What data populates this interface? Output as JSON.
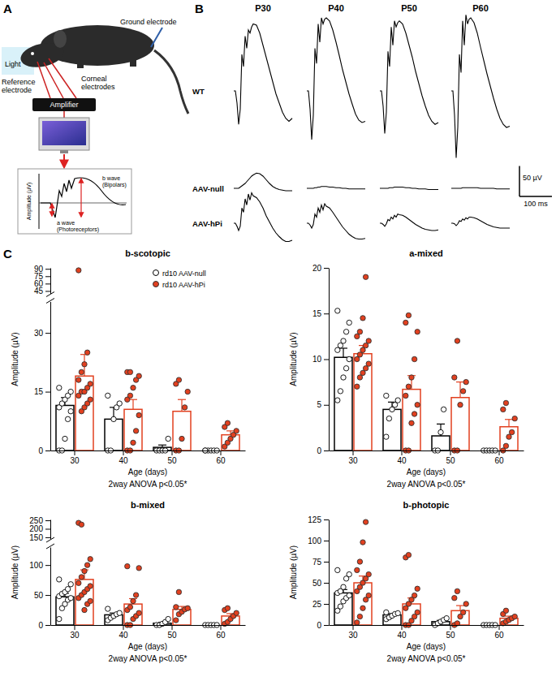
{
  "panel_labels": [
    "A",
    "B",
    "C"
  ],
  "diagram": {
    "ground": "Ground electrode",
    "light": "Light",
    "reference": [
      "Reference",
      "electrode"
    ],
    "corneal": [
      "Corneal",
      "electrodes"
    ],
    "amplifier": "Amplifier",
    "inset_y": "Amplitude (µV)",
    "b_wave": [
      "b wave",
      "(Bipolars)"
    ],
    "a_wave": [
      "a wave",
      "(Photoreceptors)"
    ]
  },
  "chart_data": [
    {
      "type": "line",
      "tick_labels": false,
      "panels": [
        "P30",
        "P40",
        "P50",
        "P60"
      ],
      "x": [
        0,
        5,
        10,
        15,
        20,
        25,
        30,
        35,
        40,
        45,
        50,
        55,
        60,
        70,
        80,
        90,
        100,
        110,
        120,
        130,
        140,
        150,
        160,
        170,
        180
      ],
      "series": [
        {
          "name": "WT",
          "color": "#000000",
          "traces": [
            [
              0,
              0,
              -20,
              -55,
              -30,
              60,
              40,
              90,
              70,
              100,
              95,
              105,
              110,
              108,
              95,
              75,
              55,
              35,
              15,
              -5,
              -20,
              -35,
              -45,
              -50,
              -45
            ],
            [
              0,
              0,
              -30,
              -80,
              -40,
              70,
              45,
              110,
              80,
              120,
              110,
              118,
              120,
              115,
              100,
              80,
              58,
              35,
              15,
              -5,
              -22,
              -38,
              -48,
              -52,
              -50
            ],
            [
              0,
              0,
              -25,
              -70,
              -35,
              65,
              40,
              105,
              75,
              115,
              105,
              112,
              115,
              110,
              95,
              75,
              55,
              32,
              12,
              -8,
              -25,
              -40,
              -50,
              -55,
              -52
            ],
            [
              0,
              0,
              -40,
              -110,
              -60,
              60,
              30,
              115,
              75,
              125,
              110,
              118,
              120,
              112,
              95,
              72,
              50,
              28,
              8,
              -12,
              -30,
              -45,
              -55,
              -60,
              -58
            ]
          ]
        },
        {
          "name": "AAV-null",
          "color": "#000000",
          "traces": [
            [
              0,
              0,
              0,
              0,
              2,
              4,
              6,
              8,
              11,
              14,
              17,
              20,
              22,
              25,
              24,
              20,
              14,
              8,
              3,
              0,
              -2,
              -3,
              -4,
              -4,
              -4
            ],
            [
              0,
              0,
              0,
              0,
              0,
              1,
              1,
              2,
              2,
              3,
              3,
              3,
              3,
              2,
              2,
              1,
              1,
              0,
              0,
              -1,
              -1,
              -1,
              -1,
              -1,
              -1
            ],
            [
              0,
              0,
              0,
              0,
              0,
              0,
              1,
              1,
              1,
              2,
              2,
              2,
              2,
              2,
              1,
              1,
              0,
              0,
              -1,
              -1,
              -1,
              -2,
              -2,
              -2,
              -2
            ],
            [
              0,
              0,
              0,
              0,
              0,
              0,
              0,
              1,
              1,
              1,
              1,
              1,
              1,
              1,
              1,
              0,
              0,
              0,
              0,
              0,
              -1,
              -1,
              -1,
              -1,
              -1
            ]
          ]
        },
        {
          "name": "AAV-hPi",
          "color": "#000000",
          "traces": [
            [
              0,
              0,
              -5,
              -12,
              -5,
              25,
              18,
              40,
              30,
              48,
              38,
              50,
              45,
              42,
              35,
              25,
              12,
              2,
              -8,
              -16,
              -22,
              -27,
              -30,
              -30,
              -28
            ],
            [
              0,
              0,
              -3,
              -8,
              -2,
              15,
              10,
              25,
              18,
              30,
              22,
              32,
              28,
              25,
              18,
              10,
              2,
              -6,
              -12,
              -18,
              -22,
              -25,
              -26,
              -26,
              -25
            ],
            [
              0,
              0,
              -2,
              -5,
              -1,
              6,
              4,
              10,
              7,
              13,
              10,
              15,
              14,
              13,
              10,
              6,
              2,
              -2,
              -5,
              -8,
              -10,
              -11,
              -12,
              -12,
              -11
            ],
            [
              0,
              0,
              -1,
              -4,
              -1,
              4,
              3,
              7,
              5,
              9,
              7,
              10,
              10,
              9,
              7,
              4,
              1,
              -2,
              -4,
              -6,
              -7,
              -8,
              -8,
              -8,
              -8
            ]
          ]
        }
      ],
      "scale_bar": {
        "y": 50,
        "y_label": "50 µV",
        "x": 100,
        "x_label": "100 ms"
      }
    },
    {
      "type": "bar",
      "title": "b-scotopic",
      "x_label": "Age (days)",
      "y_label": "Amplitude (µV)",
      "annotation": "2way ANOVA p<0.05*",
      "categories": [
        30,
        40,
        50,
        60
      ],
      "ylim": [
        0,
        38
      ],
      "yticks": [
        0,
        15,
        30
      ],
      "ylim_upper": [
        40,
        92
      ],
      "yticks_upper": [
        45,
        60,
        75,
        90
      ],
      "legend": "top-right",
      "series": [
        {
          "name": "rd10 AAV-null",
          "color": "#000000",
          "marker": "open-circle",
          "values": [
            11.5,
            8,
            0.8,
            0
          ],
          "errors": [
            2,
            3,
            0.6,
            0
          ],
          "points": [
            [
              0,
              0,
              3,
              8,
              10,
              11,
              12,
              13,
              14,
              15,
              16
            ],
            [
              0,
              0,
              8,
              11,
              12,
              14
            ],
            [
              0,
              0,
              0,
              0,
              3
            ],
            [
              0,
              0,
              0,
              0,
              0,
              0
            ]
          ]
        },
        {
          "name": "rd10 AAV-hPi",
          "color": "#e2401f",
          "marker": "filled-circle",
          "values": [
            19,
            10.5,
            10,
            4
          ],
          "errors": [
            5.5,
            2.5,
            3,
            1
          ],
          "points": [
            [
              87,
              10,
              11,
              12,
              13,
              14,
              15,
              15,
              16,
              17,
              18,
              20,
              22,
              25
            ],
            [
              0,
              0,
              2,
              5,
              9,
              13,
              14,
              16,
              18,
              19,
              20,
              20
            ],
            [
              0,
              0,
              3,
              11,
              15,
              17,
              18
            ],
            [
              1,
              2,
              3,
              4,
              5,
              6,
              7
            ]
          ]
        }
      ]
    },
    {
      "type": "bar",
      "title": "a-mixed",
      "x_label": "Age (days)",
      "y_label": "Amplitude (µV)",
      "annotation": "2way ANOVA p<0.05*",
      "categories": [
        30,
        40,
        50,
        60
      ],
      "ylim": [
        0,
        20
      ],
      "yticks": [
        0,
        5,
        10,
        15,
        20
      ],
      "series": [
        {
          "color": "#000000",
          "marker": "open-circle",
          "values": [
            10.2,
            4.5,
            1.6,
            0
          ],
          "errors": [
            1,
            0.8,
            1.3,
            0
          ],
          "points": [
            [
              5.5,
              6.5,
              8,
              9,
              10,
              11,
              11.5,
              12,
              13,
              14,
              15.3
            ],
            [
              1.5,
              3.5,
              4.5,
              5,
              5.5,
              6
            ],
            [
              0,
              0,
              2,
              4.5
            ],
            [
              0,
              0,
              0,
              0,
              0
            ]
          ]
        },
        {
          "color": "#e2401f",
          "marker": "filled-circle",
          "values": [
            10.6,
            6.7,
            5.8,
            2.6
          ],
          "errors": [
            0.9,
            1.5,
            1.7,
            0.8
          ],
          "points": [
            [
              7,
              8,
              8.5,
              9,
              9.5,
              10,
              10.5,
              11,
              11.5,
              12,
              12.5,
              13,
              14.5,
              19
            ],
            [
              0,
              0,
              3,
              4,
              5,
              6,
              7,
              8,
              10,
              13,
              14,
              14.8
            ],
            [
              0,
              0,
              5,
              6.5,
              7.5,
              8,
              12
            ],
            [
              0,
              0.5,
              1.5,
              2,
              3.5,
              4.5,
              5.2
            ]
          ]
        }
      ]
    },
    {
      "type": "bar",
      "title": "b-mixed",
      "x_label": "Age (days)",
      "y_label": "Amplitude (µV)",
      "annotation": "2way ANOVA p<0.05*",
      "categories": [
        30,
        40,
        50,
        60
      ],
      "ylim": [
        0,
        130
      ],
      "yticks": [
        0,
        50,
        100
      ],
      "ylim_upper": [
        140,
        255
      ],
      "yticks_upper": [
        150,
        200,
        250
      ],
      "series": [
        {
          "color": "#000000",
          "marker": "open-circle",
          "values": [
            47,
            17,
            3,
            0
          ],
          "errors": [
            6,
            3,
            1.5,
            0
          ],
          "points": [
            [
              10,
              28,
              35,
              42,
              45,
              48,
              52,
              55,
              60,
              68,
              76
            ],
            [
              8,
              12,
              15,
              18,
              20,
              27
            ],
            [
              0,
              0,
              2,
              5,
              10
            ],
            [
              0,
              0,
              0,
              0,
              0
            ]
          ]
        },
        {
          "color": "#e2401f",
          "marker": "filled-circle",
          "values": [
            76,
            35,
            26,
            15
          ],
          "errors": [
            16,
            9,
            5,
            4
          ],
          "points": [
            [
              235,
              225,
              25,
              35,
              40,
              45,
              50,
              55,
              60,
              65,
              70,
              80,
              90,
              100,
              110
            ],
            [
              0,
              0,
              10,
              15,
              20,
              25,
              30,
              40,
              50,
              95,
              98
            ],
            [
              8,
              18,
              22,
              26,
              28,
              30,
              55
            ],
            [
              2,
              5,
              10,
              15,
              20,
              25,
              28
            ]
          ]
        }
      ]
    },
    {
      "type": "bar",
      "title": "b-photopic",
      "x_label": "Age (days)",
      "y_label": "Amplitude (µV)",
      "annotation": "2way ANOVA p<0.05*",
      "categories": [
        30,
        40,
        50,
        60
      ],
      "ylim": [
        0,
        125
      ],
      "yticks": [
        0,
        25,
        50,
        75,
        100,
        125
      ],
      "series": [
        {
          "color": "#000000",
          "marker": "open-circle",
          "values": [
            38,
            12,
            4,
            0
          ],
          "errors": [
            4,
            1.5,
            1.5,
            0
          ],
          "points": [
            [
              17,
              22,
              28,
              32,
              35,
              38,
              40,
              45,
              55,
              60,
              65
            ],
            [
              7,
              9,
              11,
              13,
              14,
              15
            ],
            [
              0,
              2,
              4,
              6,
              8
            ],
            [
              0,
              0,
              0,
              0,
              0
            ]
          ]
        },
        {
          "color": "#e2401f",
          "marker": "filled-circle",
          "values": [
            50,
            25,
            17,
            8
          ],
          "errors": [
            8,
            7,
            6,
            2.5
          ],
          "points": [
            [
              3,
              10,
              20,
              30,
              35,
              40,
              45,
              50,
              55,
              60,
              65,
              75,
              98,
              122
            ],
            [
              0,
              0,
              5,
              10,
              15,
              20,
              25,
              30,
              35,
              43,
              80,
              83
            ],
            [
              0,
              2,
              10,
              15,
              25,
              32,
              40
            ],
            [
              2,
              4,
              6,
              8,
              10,
              13,
              17
            ]
          ]
        }
      ]
    }
  ]
}
